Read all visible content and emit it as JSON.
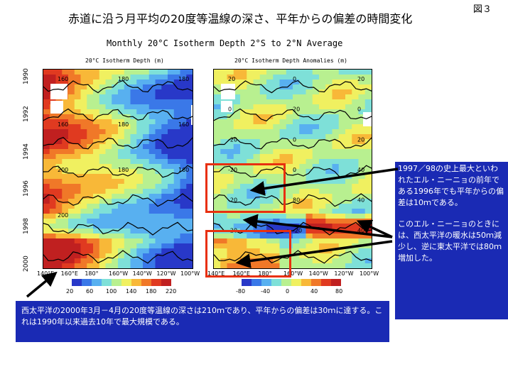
{
  "fig_number": "図３",
  "title": "赤道に沿う月平均の20度等温線の深さ、平年からの偏差の時間変化",
  "chart_data": [
    {
      "type": "heatmap",
      "figure_title": "Monthly 20°C Isotherm Depth   2°S to 2°N Average",
      "title": "20°C Isotherm Depth (m)",
      "x_ticks": [
        "140°E",
        "160°E",
        "180°",
        "160°W",
        "140°W",
        "120°W",
        "100°W"
      ],
      "y_ticks": [
        "1990",
        "1992",
        "1994",
        "1996",
        "1998",
        "2000"
      ],
      "y_range": [
        1990,
        2000
      ],
      "colorbar_ticks": [
        20,
        60,
        100,
        140,
        180,
        220
      ],
      "colorbar_colors": [
        "#2838c8",
        "#3a78e8",
        "#58b0f0",
        "#7ee0d8",
        "#b8f090",
        "#f0f060",
        "#f8b838",
        "#f07828",
        "#e03a20",
        "#c02020"
      ],
      "contour_labels": [
        "160",
        "180",
        "180",
        "160",
        "180",
        "160",
        "200",
        "180",
        "160",
        "200"
      ]
    },
    {
      "type": "heatmap",
      "title": "20°C Isotherm Depth Anomalies (m)",
      "x_ticks": [
        "140°E",
        "160°E",
        "180°",
        "160°W",
        "140°W",
        "120°W",
        "100°W"
      ],
      "y_ticks": [
        "1990",
        "1992",
        "1994",
        "1996",
        "1998",
        "2000"
      ],
      "y_range": [
        1990,
        2000
      ],
      "colorbar_ticks": [
        -80,
        -40,
        0,
        40,
        80
      ],
      "colorbar_colors": [
        "#2838c8",
        "#3a78e8",
        "#58b0f0",
        "#7ee0d8",
        "#b8f090",
        "#f0f060",
        "#f8b838",
        "#f07828",
        "#e03a20",
        "#c02020"
      ],
      "contour_labels": [
        "20",
        "0",
        "20",
        "0",
        "20",
        "0",
        "-20",
        "0",
        "20",
        "-20",
        "0",
        "40",
        "-20",
        "80",
        "40",
        "-20",
        "-20",
        "40"
      ]
    }
  ],
  "callouts": {
    "right_1": "1997／98の史上最大といわれたエル・ニーニョの前年である1996年でも平年からの偏差は10ｍである。",
    "right_2": "このエル・ニーニョのときには、西太平洋の暖水は50ｍ減少し、逆に東太平洋では80ｍ増加した。",
    "bottom": "西太平洋の2000年3月－4月の20度等温線の深さは210ｍであり、平年からの偏差は30ｍに達する。これは1990年以来過去10年で最大規模である。"
  },
  "colors": {
    "callout_bg": "#1a2ab4",
    "highlight_box": "#e83010",
    "arrow": "#000000"
  }
}
